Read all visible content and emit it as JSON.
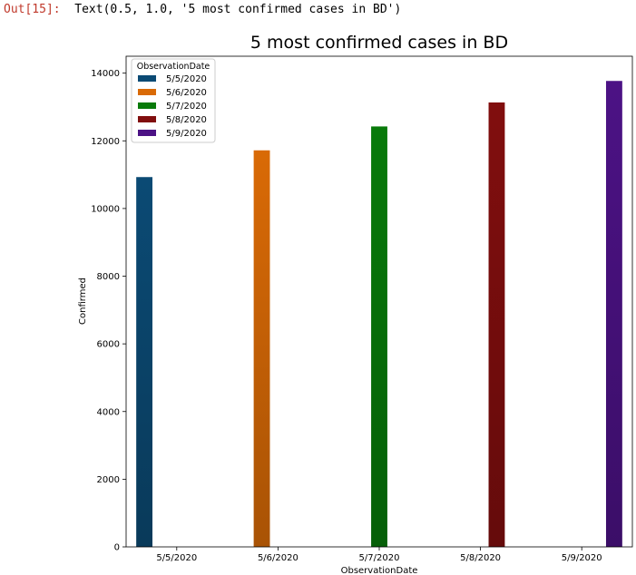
{
  "cell": {
    "prompt": "Out[15]:",
    "output": "Text(0.5, 1.0, '5 most confirmed cases in BD')"
  },
  "chart_data": {
    "type": "bar",
    "title": "5 most confirmed cases in BD",
    "xlabel": "ObservationDate",
    "ylabel": "Confirmed",
    "categories": [
      "5/5/2020",
      "5/6/2020",
      "5/7/2020",
      "5/8/2020",
      "5/9/2020"
    ],
    "series": [
      {
        "name": "5/5/2020",
        "color": "#0b4a74",
        "values": [
          10929,
          0,
          0,
          0,
          0
        ]
      },
      {
        "name": "5/6/2020",
        "color": "#d96a06",
        "values": [
          0,
          11719,
          0,
          0,
          0
        ]
      },
      {
        "name": "5/7/2020",
        "color": "#087a0a",
        "values": [
          0,
          0,
          12425,
          0,
          0
        ]
      },
      {
        "name": "5/8/2020",
        "color": "#810e0e",
        "values": [
          0,
          0,
          0,
          13134,
          0
        ]
      },
      {
        "name": "5/9/2020",
        "color": "#4c1285",
        "values": [
          0,
          0,
          0,
          0,
          13770
        ]
      }
    ],
    "ylim": [
      0,
      14500
    ],
    "yticks": [
      0,
      2000,
      4000,
      6000,
      8000,
      10000,
      12000,
      14000
    ],
    "legend": {
      "title": "ObservationDate",
      "placement": "upper-left"
    },
    "grid": false
  }
}
